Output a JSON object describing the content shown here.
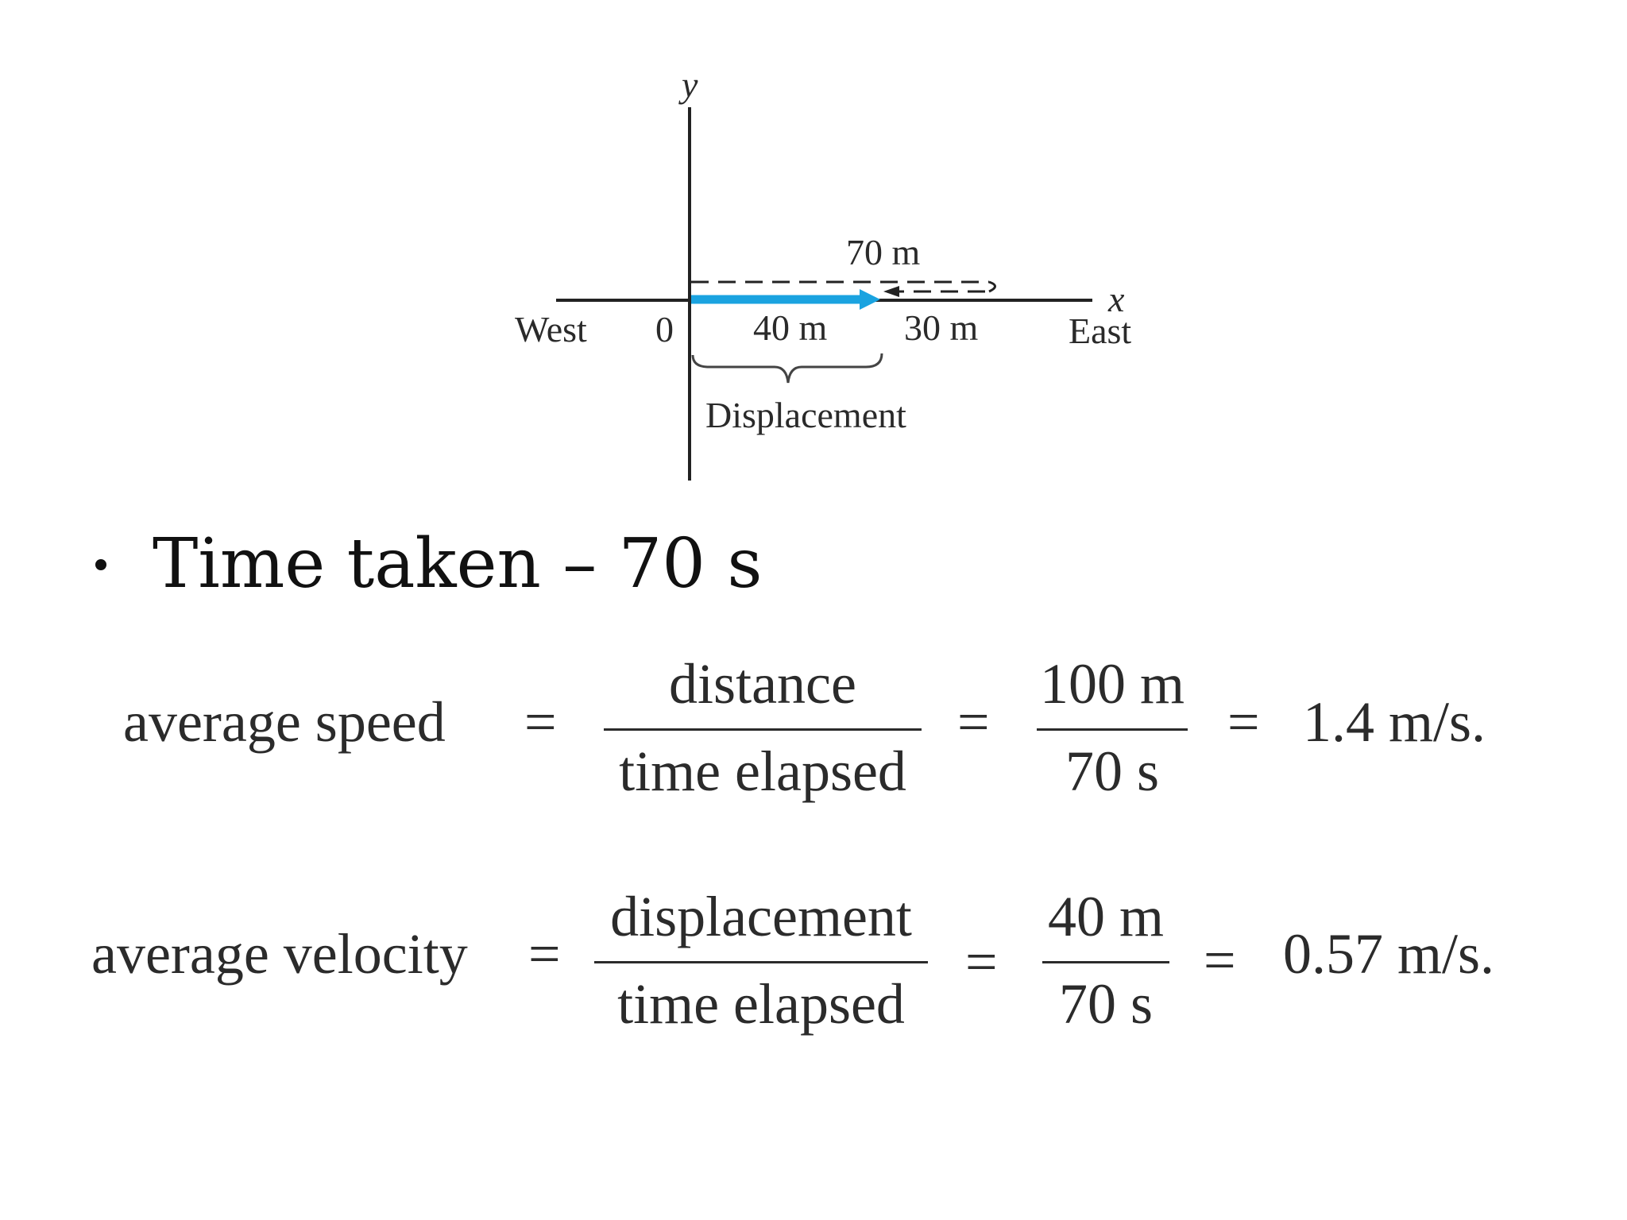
{
  "diagram": {
    "axis_y_label": "y",
    "axis_x_label": "x",
    "west_label": "West",
    "east_label": "East",
    "origin_label": "0",
    "seg1_label": "40 m",
    "seg2_label": "30 m",
    "return_label": "70 m",
    "displacement_label": "Displacement",
    "colors": {
      "arrow": "#1aa3e0",
      "axis": "#222222"
    }
  },
  "bullet": {
    "text": "Time taken – 70 s"
  },
  "speed_eq": {
    "lhs": "average speed",
    "equals": "=",
    "num1": "distance",
    "den1": "time elapsed",
    "num2": "100 m",
    "den2": "70 s",
    "result": "1.4 m/s."
  },
  "velocity_eq": {
    "lhs": "average velocity",
    "equals": "=",
    "num1": "displacement",
    "den1": "time elapsed",
    "num2": "40 m",
    "den2": "70 s",
    "result": "0.57 m/s."
  }
}
